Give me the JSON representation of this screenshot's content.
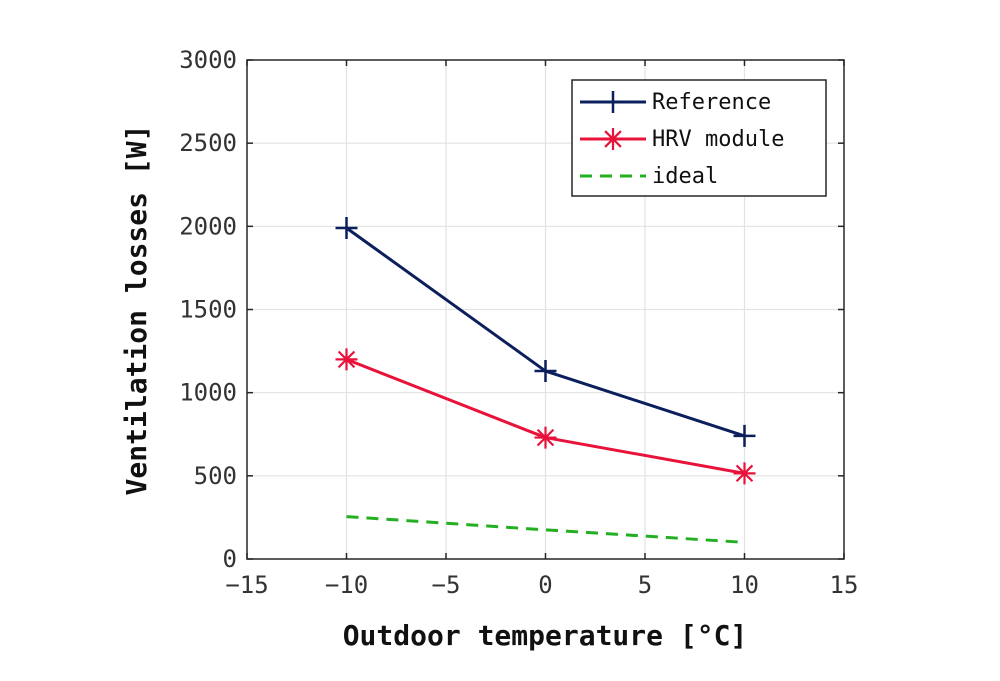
{
  "chart_data": {
    "type": "line",
    "xlabel": "Outdoor temperature [°C]",
    "ylabel": "Ventilation losses [W]",
    "xlim": [
      -15,
      15
    ],
    "ylim": [
      0,
      3000
    ],
    "xticks": [
      -15,
      -10,
      -5,
      0,
      5,
      10,
      15
    ],
    "yticks": [
      0,
      500,
      1000,
      1500,
      2000,
      2500,
      3000
    ],
    "xtick_labels": [
      "−15",
      "−10",
      "−5",
      "0",
      "5",
      "10",
      "15"
    ],
    "ytick_labels": [
      "0",
      "500",
      "1000",
      "1500",
      "2000",
      "2500",
      "3000"
    ],
    "grid": true,
    "legend_position": "top-right",
    "series": [
      {
        "name": "Reference",
        "x": [
          -10,
          0,
          10
        ],
        "y": [
          1990,
          1130,
          740
        ],
        "color": "#0b1f5c",
        "marker": "plus",
        "style": "solid"
      },
      {
        "name": "HRV module",
        "x": [
          -10,
          0,
          10
        ],
        "y": [
          1200,
          730,
          515
        ],
        "color": "#e8133a",
        "marker": "asterisk",
        "style": "solid"
      },
      {
        "name": "ideal",
        "x": [
          -10,
          0,
          10
        ],
        "y": [
          255,
          175,
          100
        ],
        "color": "#22b022",
        "marker": "none",
        "style": "dashed"
      }
    ]
  }
}
